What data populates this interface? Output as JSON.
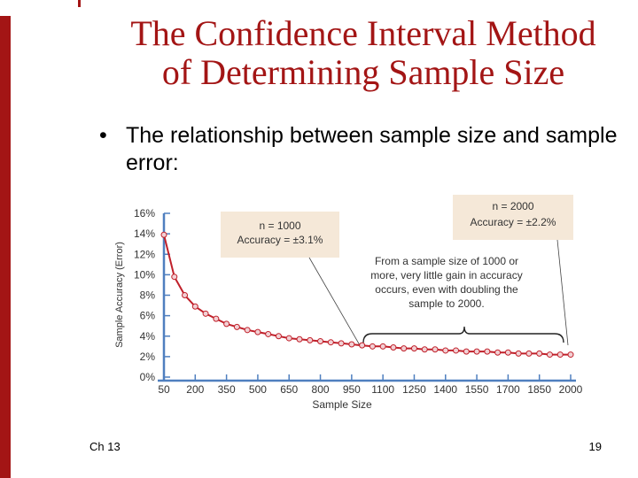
{
  "slide": {
    "title_line1": "The Confidence Interval Method",
    "title_line2": "of Determining Sample Size",
    "bullet_symbol": "•",
    "bullet_text": "The relationship between sample size and sample error:",
    "footer_left": "Ch 13",
    "page_number": "19",
    "accent_color": "#a31515"
  },
  "chart_data": {
    "type": "line",
    "xlabel": "Sample Size",
    "ylabel": "Sample Accuracy (Error)",
    "x_ticks": [
      "50",
      "200",
      "350",
      "500",
      "650",
      "800",
      "950",
      "1100",
      "1250",
      "1400",
      "1550",
      "1700",
      "1850",
      "2000"
    ],
    "y_ticks": [
      "0%",
      "2%",
      "4%",
      "6%",
      "8%",
      "10%",
      "12%",
      "14%",
      "16%"
    ],
    "xlim": [
      50,
      2000
    ],
    "ylim": [
      0,
      16
    ],
    "line_color": "#c0202a",
    "marker_fill": "#f2d0d4",
    "series": [
      {
        "x": [
          50,
          100,
          150,
          200,
          250,
          300,
          350,
          400,
          450,
          500,
          550,
          600,
          650,
          700,
          750,
          800,
          850,
          900,
          950,
          1000,
          1050,
          1100,
          1150,
          1200,
          1250,
          1300,
          1350,
          1400,
          1450,
          1500,
          1550,
          1600,
          1650,
          1700,
          1750,
          1800,
          1850,
          1900,
          1950,
          2000
        ],
        "y": [
          13.9,
          9.8,
          8.0,
          6.9,
          6.2,
          5.7,
          5.2,
          4.9,
          4.6,
          4.4,
          4.2,
          4.0,
          3.8,
          3.7,
          3.6,
          3.5,
          3.4,
          3.3,
          3.2,
          3.1,
          3.0,
          3.0,
          2.9,
          2.8,
          2.8,
          2.7,
          2.7,
          2.6,
          2.6,
          2.5,
          2.5,
          2.5,
          2.4,
          2.4,
          2.3,
          2.3,
          2.3,
          2.2,
          2.2,
          2.2
        ]
      }
    ],
    "annotations": {
      "box1_n": "n = 1000",
      "box1_acc": "Accuracy = ±3.1%",
      "box2_n": "n = 2000",
      "box2_acc": "Accuracy = ±2.2%",
      "note_line1": "From a sample size of 1000 or",
      "note_line2": "more, very little gain in accuracy",
      "note_line3": "occurs, even with doubling the",
      "note_line4": "sample to 2000."
    }
  }
}
